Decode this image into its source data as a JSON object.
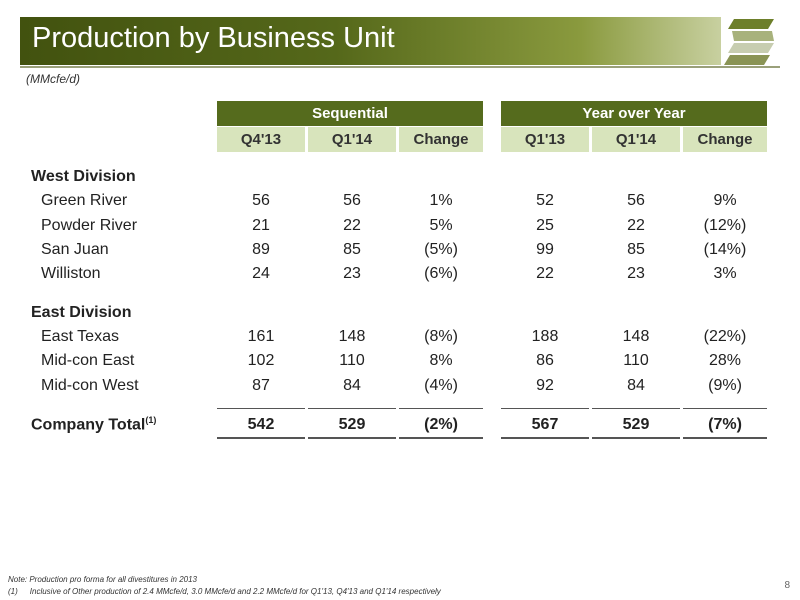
{
  "header": {
    "title": "Production by Business Unit",
    "unit_note": "(MMcfe/d)"
  },
  "table": {
    "groups": [
      "Sequential",
      "Year over Year"
    ],
    "columns": [
      "Q4'13",
      "Q1'14",
      "Change",
      "Q1'13",
      "Q1'14",
      "Change"
    ],
    "west_division": {
      "label": "West Division",
      "rows": [
        {
          "name": "Green River",
          "values": [
            "56",
            "56",
            "1%",
            "52",
            "56",
            "9%"
          ]
        },
        {
          "name": "Powder River",
          "values": [
            "21",
            "22",
            "5%",
            "25",
            "22",
            "(12%)"
          ]
        },
        {
          "name": "San Juan",
          "values": [
            "89",
            "85",
            "(5%)",
            "99",
            "85",
            "(14%)"
          ]
        },
        {
          "name": "Williston",
          "values": [
            "24",
            "23",
            "(6%)",
            "22",
            "23",
            "3%"
          ]
        }
      ]
    },
    "east_division": {
      "label": "East Division",
      "rows": [
        {
          "name": "East Texas",
          "values": [
            "161",
            "148",
            "(8%)",
            "188",
            "148",
            "(22%)"
          ]
        },
        {
          "name": "Mid-con East",
          "values": [
            "102",
            "110",
            "8%",
            "86",
            "110",
            "28%"
          ]
        },
        {
          "name": "Mid-con West",
          "values": [
            "87",
            "84",
            "(4%)",
            "92",
            "84",
            "(9%)"
          ]
        }
      ]
    },
    "total": {
      "label": "Company Total",
      "footnote_ref": "(1)",
      "values": [
        "542",
        "529",
        "(2%)",
        "567",
        "529",
        "(7%)"
      ]
    }
  },
  "footer": {
    "note": "Note: Production pro forma for all divestitures in 2013",
    "footnote_marker": "(1)",
    "footnote": "Inclusive of Other production of 2.4 MMcfe/d, 3.0 MMcfe/d and 2.2 MMcfe/d for Q1'13, Q4'13 and Q1'14 respectively",
    "page_number": "8"
  },
  "colors": {
    "title_bar": "#556b1d",
    "group_header": "#556b1d",
    "column_header": "#d8e4bc"
  },
  "icons": [
    "company-logo-icon"
  ]
}
